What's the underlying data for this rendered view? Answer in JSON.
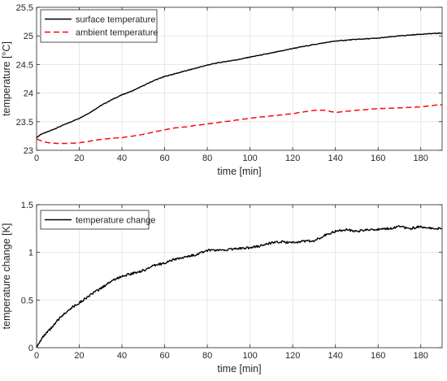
{
  "chart_data": [
    {
      "type": "line",
      "xlabel": "time [min]",
      "ylabel": "temperature [°C]",
      "xlim": [
        0,
        190
      ],
      "ylim": [
        23,
        25.5
      ],
      "xticks": [
        0,
        20,
        40,
        60,
        80,
        100,
        120,
        140,
        160,
        180
      ],
      "yticks": [
        23,
        23.5,
        24,
        24.5,
        25,
        25.5
      ],
      "grid": true,
      "legend_position": "top-left",
      "series": [
        {
          "name": "surface temperature",
          "color": "#000000",
          "style": "solid",
          "x": [
            0,
            2,
            5,
            10,
            15,
            20,
            25,
            30,
            35,
            40,
            45,
            50,
            55,
            60,
            65,
            70,
            75,
            80,
            85,
            90,
            95,
            100,
            110,
            120,
            130,
            140,
            150,
            160,
            170,
            180,
            190
          ],
          "y": [
            23.22,
            23.28,
            23.32,
            23.4,
            23.48,
            23.56,
            23.66,
            23.78,
            23.88,
            23.97,
            24.04,
            24.13,
            24.22,
            24.29,
            24.34,
            24.39,
            24.44,
            24.49,
            24.53,
            24.56,
            24.59,
            24.63,
            24.7,
            24.78,
            24.85,
            24.91,
            24.94,
            24.96,
            25.0,
            25.03,
            25.05
          ]
        },
        {
          "name": "ambient temperature",
          "color": "#ff0000",
          "style": "dashed",
          "x": [
            0,
            3,
            6,
            10,
            15,
            20,
            25,
            30,
            35,
            40,
            45,
            50,
            55,
            60,
            65,
            70,
            80,
            90,
            100,
            110,
            120,
            125,
            130,
            135,
            140,
            150,
            160,
            170,
            180,
            190
          ],
          "y": [
            23.2,
            23.15,
            23.13,
            23.12,
            23.12,
            23.13,
            23.16,
            23.19,
            23.21,
            23.22,
            23.25,
            23.28,
            23.32,
            23.36,
            23.39,
            23.41,
            23.46,
            23.51,
            23.56,
            23.6,
            23.64,
            23.67,
            23.7,
            23.7,
            23.66,
            23.7,
            23.73,
            23.74,
            23.76,
            23.8
          ]
        }
      ]
    },
    {
      "type": "line",
      "xlabel": "time [min]",
      "ylabel": "temperature change [K]",
      "xlim": [
        0,
        190
      ],
      "ylim": [
        0,
        1.5
      ],
      "xticks": [
        0,
        20,
        40,
        60,
        80,
        100,
        120,
        140,
        160,
        180
      ],
      "yticks": [
        0,
        0.5,
        1,
        1.5
      ],
      "grid": true,
      "legend_position": "top-left",
      "series": [
        {
          "name": "temperature change",
          "color": "#000000",
          "style": "solid",
          "x": [
            0,
            1,
            3,
            5,
            8,
            10,
            15,
            20,
            25,
            30,
            35,
            40,
            45,
            50,
            55,
            60,
            65,
            70,
            75,
            80,
            85,
            90,
            95,
            100,
            105,
            110,
            115,
            120,
            125,
            130,
            135,
            140,
            145,
            150,
            155,
            160,
            165,
            170,
            175,
            180,
            185,
            190
          ],
          "y": [
            0.0,
            0.05,
            0.11,
            0.16,
            0.23,
            0.29,
            0.4,
            0.47,
            0.55,
            0.62,
            0.7,
            0.75,
            0.78,
            0.81,
            0.86,
            0.89,
            0.93,
            0.95,
            0.98,
            1.02,
            1.02,
            1.03,
            1.04,
            1.05,
            1.07,
            1.1,
            1.11,
            1.1,
            1.12,
            1.12,
            1.18,
            1.22,
            1.24,
            1.22,
            1.24,
            1.24,
            1.25,
            1.27,
            1.25,
            1.27,
            1.25,
            1.25
          ]
        }
      ]
    }
  ]
}
